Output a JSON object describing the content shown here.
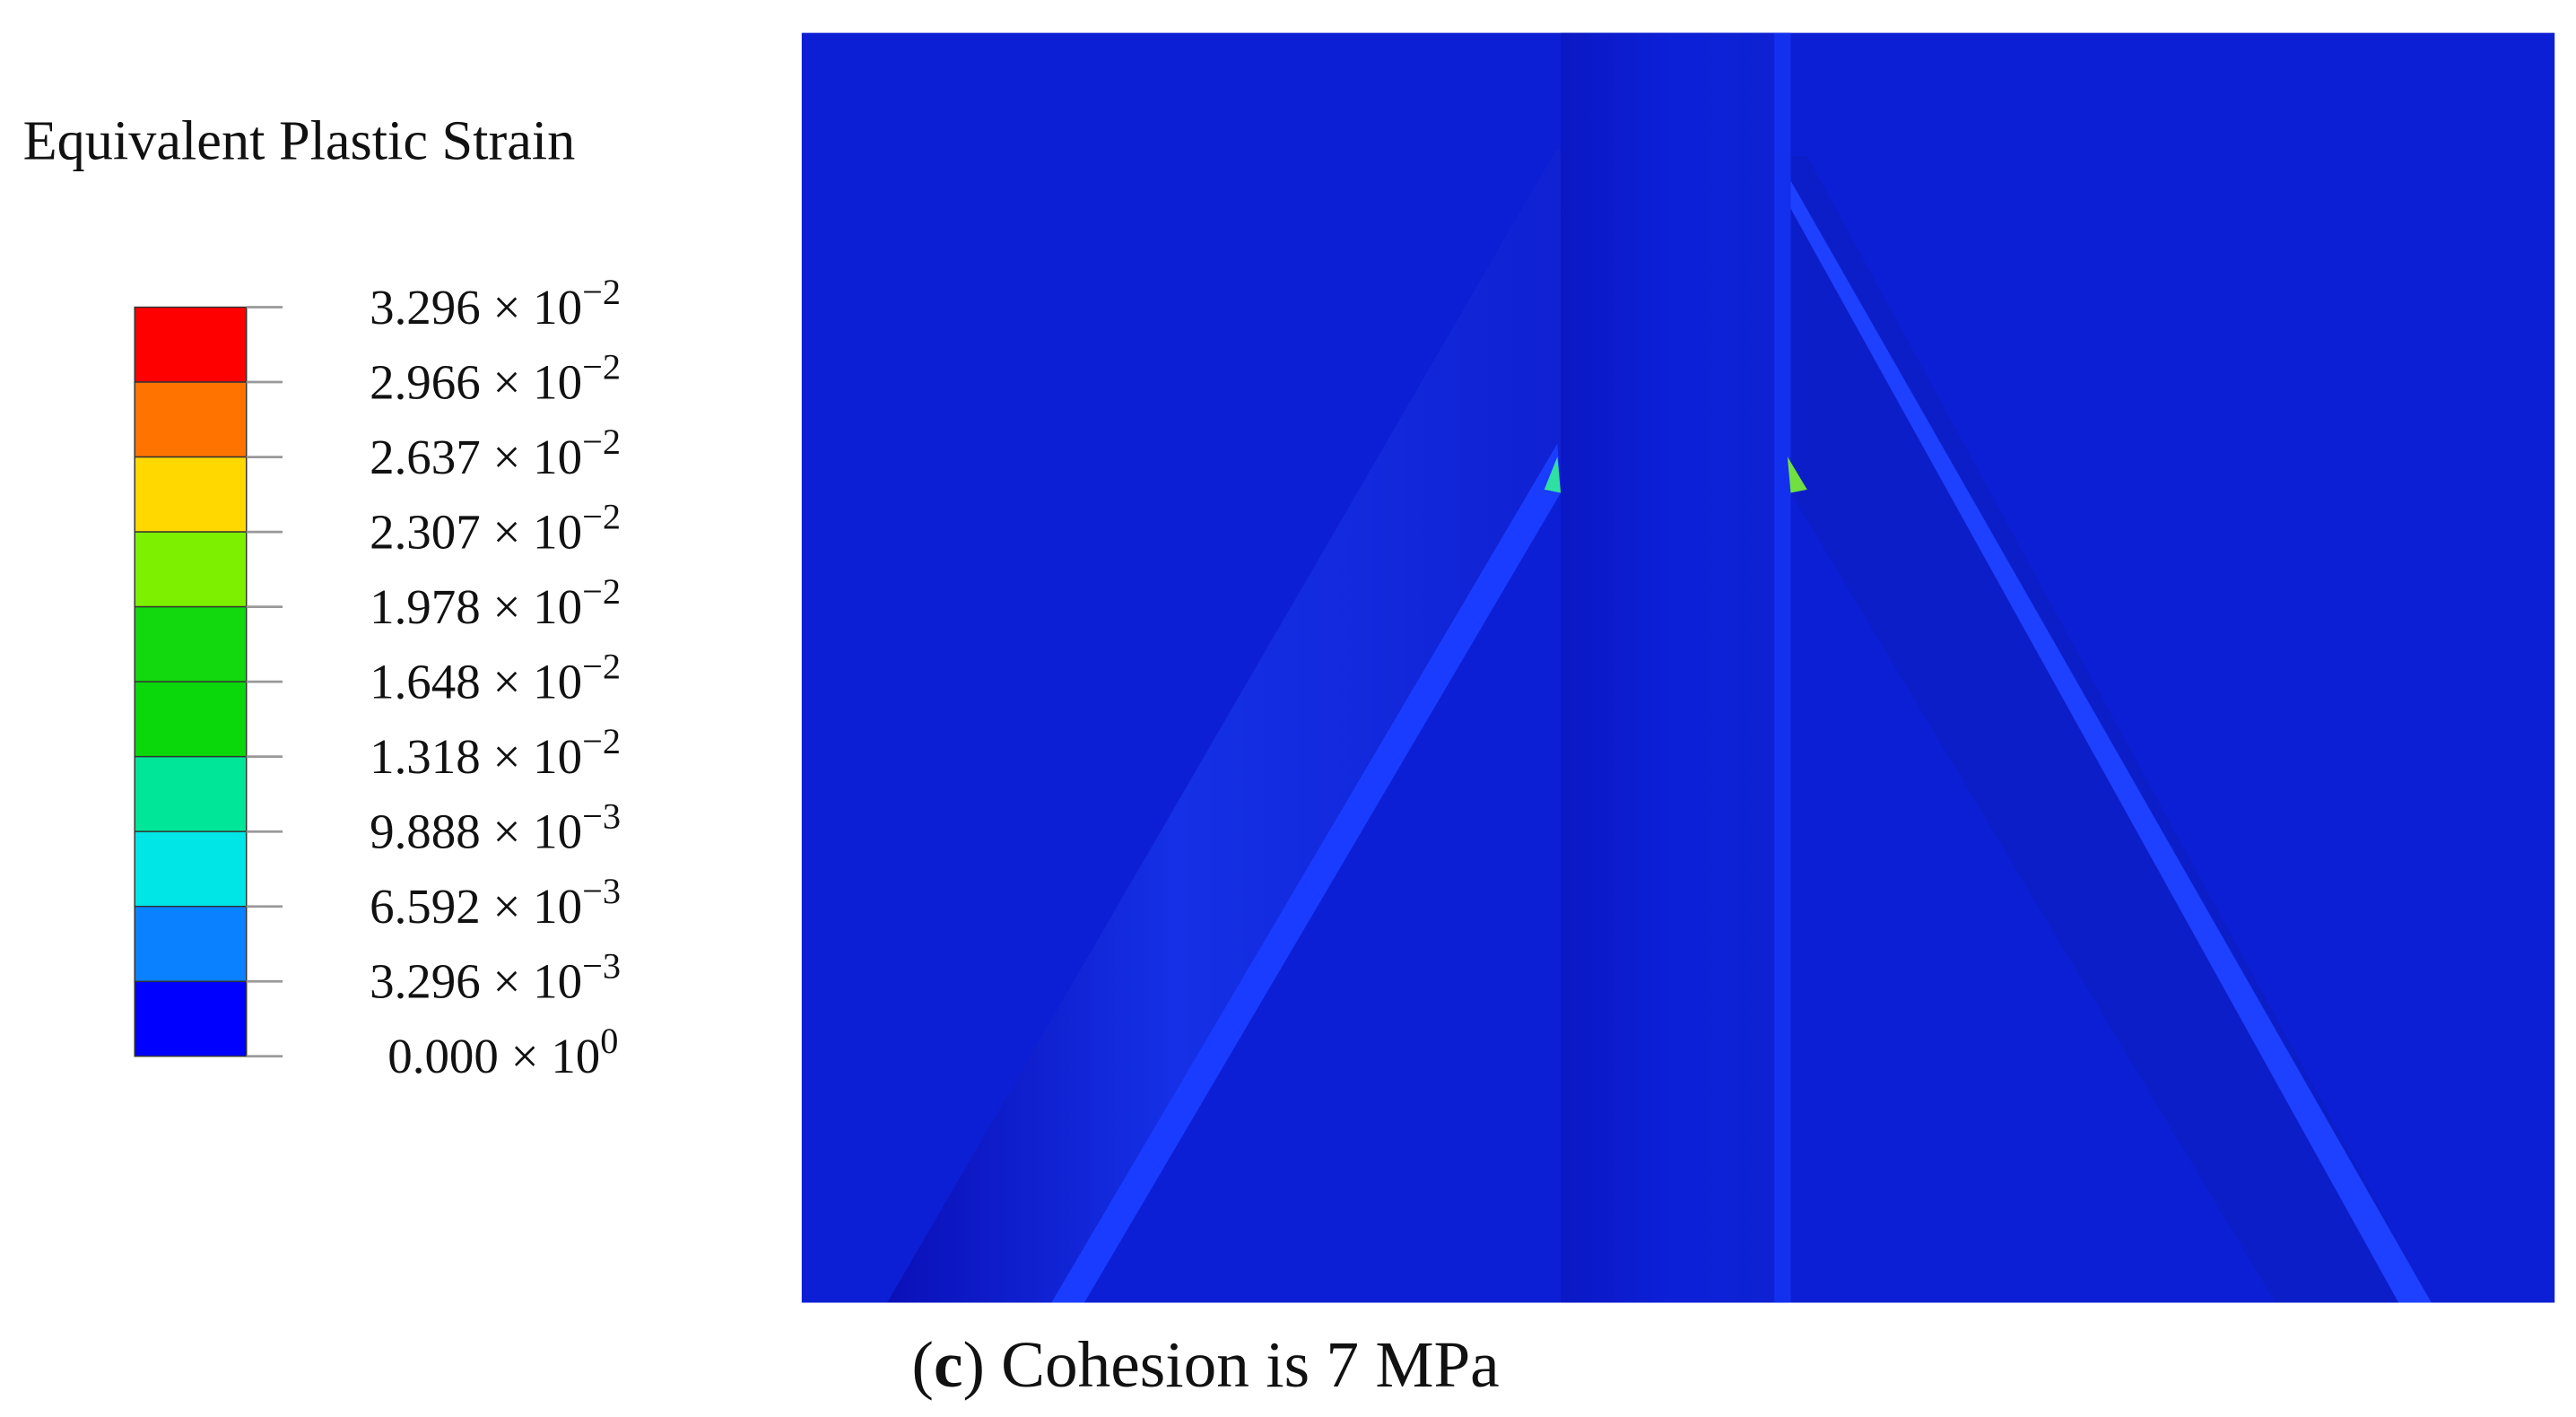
{
  "legend": {
    "title": "Equivalent Plastic Strain",
    "labels": [
      {
        "text": "3.296 × 10",
        "exponent": "−2"
      },
      {
        "text": "2.966 × 10",
        "exponent": "−2"
      },
      {
        "text": "2.637 × 10",
        "exponent": "−2"
      },
      {
        "text": "2.307 × 10",
        "exponent": "−2"
      },
      {
        "text": "1.978 × 10",
        "exponent": "−2"
      },
      {
        "text": "1.648 × 10",
        "exponent": "−2"
      },
      {
        "text": "1.318 × 10",
        "exponent": "−2"
      },
      {
        "text": "9.888 × 10",
        "exponent": "−3"
      },
      {
        "text": "6.592 × 10",
        "exponent": "−3"
      },
      {
        "text": "3.296 × 10",
        "exponent": "−3"
      },
      {
        "text": "0.000 × 10",
        "exponent": "0"
      }
    ],
    "colors": [
      "#ff0000",
      "#ff7300",
      "#ffd800",
      "#7df000",
      "#12d80e",
      "#0ad80a",
      "#00e698",
      "#00e6e6",
      "#0a82ff",
      "#0000ff"
    ]
  },
  "caption": {
    "open": "(",
    "label": "c",
    "rest": ") Cohesion is 7 MPa"
  }
}
